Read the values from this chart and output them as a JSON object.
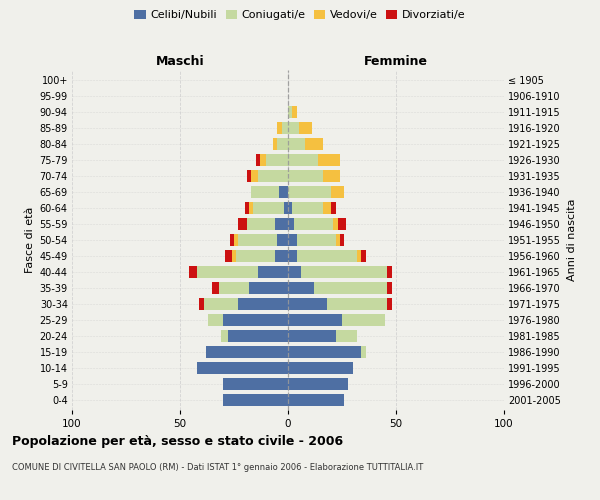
{
  "age_groups": [
    "0-4",
    "5-9",
    "10-14",
    "15-19",
    "20-24",
    "25-29",
    "30-34",
    "35-39",
    "40-44",
    "45-49",
    "50-54",
    "55-59",
    "60-64",
    "65-69",
    "70-74",
    "75-79",
    "80-84",
    "85-89",
    "90-94",
    "95-99",
    "100+"
  ],
  "birth_years": [
    "2001-2005",
    "1996-2000",
    "1991-1995",
    "1986-1990",
    "1981-1985",
    "1976-1980",
    "1971-1975",
    "1966-1970",
    "1961-1965",
    "1956-1960",
    "1951-1955",
    "1946-1950",
    "1941-1945",
    "1936-1940",
    "1931-1935",
    "1926-1930",
    "1921-1925",
    "1916-1920",
    "1911-1915",
    "1906-1910",
    "≤ 1905"
  ],
  "males": {
    "celibi": [
      30,
      30,
      42,
      38,
      28,
      30,
      23,
      18,
      14,
      6,
      5,
      6,
      2,
      4,
      0,
      0,
      0,
      0,
      0,
      0,
      0
    ],
    "coniugati": [
      0,
      0,
      0,
      0,
      3,
      7,
      16,
      14,
      28,
      18,
      18,
      13,
      14,
      13,
      14,
      10,
      5,
      3,
      0,
      0,
      0
    ],
    "vedovi": [
      0,
      0,
      0,
      0,
      0,
      0,
      0,
      0,
      0,
      2,
      2,
      0,
      2,
      0,
      3,
      3,
      2,
      2,
      0,
      0,
      0
    ],
    "divorziati": [
      0,
      0,
      0,
      0,
      0,
      0,
      2,
      3,
      4,
      3,
      2,
      4,
      2,
      0,
      2,
      2,
      0,
      0,
      0,
      0,
      0
    ]
  },
  "females": {
    "nubili": [
      26,
      28,
      30,
      34,
      22,
      25,
      18,
      12,
      6,
      4,
      4,
      3,
      2,
      0,
      0,
      0,
      0,
      0,
      0,
      0,
      0
    ],
    "coniugate": [
      0,
      0,
      0,
      2,
      10,
      20,
      28,
      34,
      40,
      28,
      18,
      18,
      14,
      20,
      16,
      14,
      8,
      5,
      2,
      0,
      0
    ],
    "vedove": [
      0,
      0,
      0,
      0,
      0,
      0,
      0,
      0,
      0,
      2,
      2,
      2,
      4,
      6,
      8,
      10,
      8,
      6,
      2,
      0,
      0
    ],
    "divorziate": [
      0,
      0,
      0,
      0,
      0,
      0,
      2,
      2,
      2,
      2,
      2,
      4,
      2,
      0,
      0,
      0,
      0,
      0,
      0,
      0,
      0
    ]
  },
  "colors": {
    "celibi": "#4e6fa3",
    "coniugati": "#c5d9a0",
    "vedovi": "#f5c040",
    "divorziati": "#cc1111"
  },
  "xlim": 100,
  "title": "Popolazione per età, sesso e stato civile - 2006",
  "subtitle": "COMUNE DI CIVITELLA SAN PAOLO (RM) - Dati ISTAT 1° gennaio 2006 - Elaborazione TUTTITALIA.IT",
  "ylabel": "Fasce di età",
  "ylabel_right": "Anni di nascita",
  "xlabel_left": "Maschi",
  "xlabel_right": "Femmine",
  "bg_color": "#f0f0eb",
  "grid_color": "#cccccc"
}
